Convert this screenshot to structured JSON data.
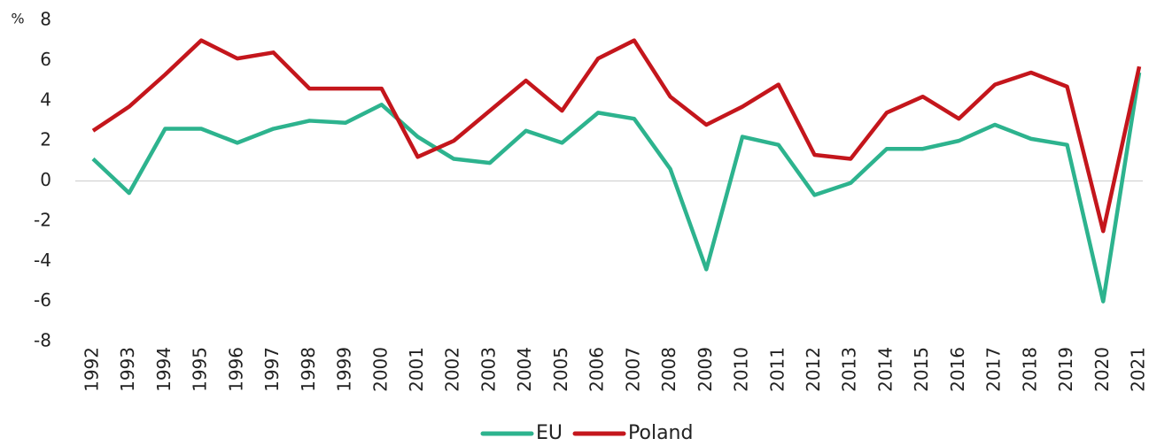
{
  "chart_data": {
    "type": "line",
    "y_label": "%",
    "categories": [
      "1992",
      "1993",
      "1994",
      "1995",
      "1996",
      "1997",
      "1998",
      "1999",
      "2000",
      "2001",
      "2002",
      "2003",
      "2004",
      "2005",
      "2006",
      "2007",
      "2008",
      "2009",
      "2010",
      "2011",
      "2012",
      "2013",
      "2014",
      "2015",
      "2016",
      "2017",
      "2018",
      "2019",
      "2020",
      "2021"
    ],
    "series": [
      {
        "name": "EU",
        "color": "#2db38e",
        "values": [
          1.1,
          -0.6,
          2.6,
          2.6,
          1.9,
          2.6,
          3.0,
          2.9,
          3.8,
          2.2,
          1.1,
          0.9,
          2.5,
          1.9,
          3.4,
          3.1,
          0.6,
          -4.4,
          2.2,
          1.8,
          -0.7,
          -0.1,
          1.6,
          1.6,
          2.0,
          2.8,
          2.1,
          1.8,
          -6.0,
          5.4
        ]
      },
      {
        "name": "Poland",
        "color": "#c4161c",
        "values": [
          2.5,
          3.7,
          5.3,
          7.0,
          6.1,
          6.4,
          4.6,
          4.6,
          4.6,
          1.2,
          2.0,
          3.5,
          5.0,
          3.5,
          6.1,
          7.0,
          4.2,
          2.8,
          3.7,
          4.8,
          1.3,
          1.1,
          3.4,
          4.2,
          3.1,
          4.8,
          5.4,
          4.7,
          -2.5,
          5.7
        ]
      }
    ],
    "ylim": [
      -8,
      8
    ],
    "yticks": [
      8,
      6,
      4,
      2,
      0,
      -2,
      -4,
      -6,
      -8
    ],
    "grid": false,
    "legend": "bottom"
  }
}
